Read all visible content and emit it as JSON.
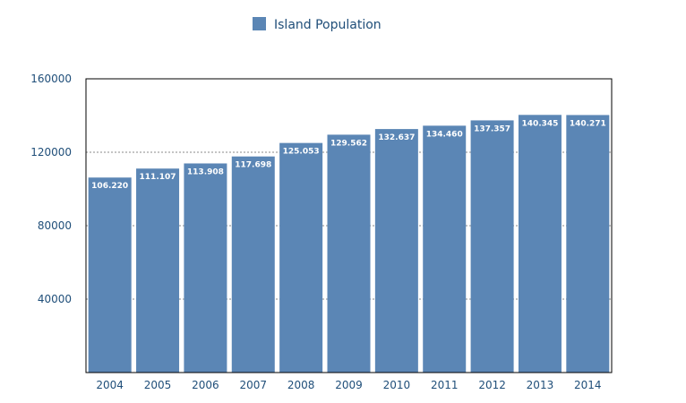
{
  "chart_data": {
    "type": "bar",
    "categories": [
      "2004",
      "2005",
      "2006",
      "2007",
      "2008",
      "2009",
      "2010",
      "2011",
      "2012",
      "2013",
      "2014"
    ],
    "series": [
      {
        "name": "Island Population",
        "values": [
          106220,
          111107,
          113908,
          117698,
          125053,
          129562,
          132637,
          134460,
          137357,
          140345,
          140271
        ],
        "labels": [
          "106.220",
          "111.107",
          "113.908",
          "117.698",
          "125.053",
          "129.562",
          "132.637",
          "134.460",
          "137.357",
          "140.345",
          "140.271"
        ]
      }
    ],
    "y_ticks": [
      "40000",
      "80000",
      "120000",
      "160000"
    ],
    "ylim": [
      0,
      160000
    ],
    "grid": true,
    "legend_position": "top-center",
    "colors": {
      "bar": "#5b86b5",
      "text": "#1f4e79",
      "grid": "#888888",
      "axis": "#000000"
    }
  }
}
